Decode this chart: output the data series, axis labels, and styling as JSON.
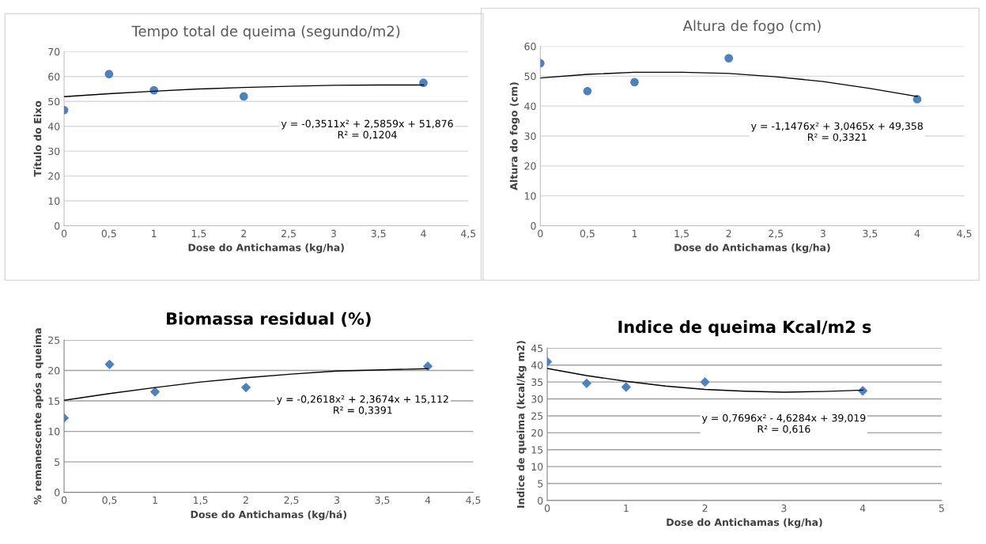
{
  "chart_data": [
    {
      "type": "scatter",
      "title": "Tempo total de queima (segundo/m2)",
      "xlabel": "Dose do Antichamas (kg/ha)",
      "ylabel": "Título do Eixo",
      "xlim": [
        0,
        4.5
      ],
      "xticks": [
        0,
        {
          "value": 0.5,
          "label": "0,5"
        },
        1,
        {
          "value": 1.5,
          "label": "1,5"
        },
        2,
        {
          "value": 2.5,
          "label": "2,5"
        },
        3,
        {
          "value": 3.5,
          "label": "3,5"
        },
        4,
        {
          "value": 4.5,
          "label": "4,5"
        }
      ],
      "ylim": [
        0,
        70
      ],
      "yticks": [
        0,
        10,
        20,
        30,
        40,
        50,
        60,
        70
      ],
      "grid": "y",
      "marker": "circle",
      "annotations": [
        "y = -0,3511x² + 2,5859x + 51,876\nR² = 0,1204"
      ],
      "series": [
        {
          "color": "#4f81bd",
          "x": [
            0,
            0.5,
            1,
            2,
            4
          ],
          "values": [
            46.5,
            61,
            54.5,
            52,
            57.5
          ]
        },
        {
          "type": "line",
          "marker": "none",
          "color": "#000000",
          "x": [
            0,
            0.5,
            1,
            1.5,
            2,
            2.5,
            3,
            3.5,
            4
          ],
          "values": [
            51.9,
            53.1,
            54.1,
            55.0,
            55.6,
            56.1,
            56.5,
            56.6,
            56.6
          ]
        }
      ]
    },
    {
      "type": "scatter",
      "title": "Altura de fogo (cm)",
      "xlabel": "Dose do Antichamas (kg/ha)",
      "ylabel": "Altura do fogo (cm)",
      "xlim": [
        0,
        4.5
      ],
      "xticks": [
        0,
        {
          "value": 0.5,
          "label": "0,5"
        },
        1,
        {
          "value": 1.5,
          "label": "1,5"
        },
        2,
        {
          "value": 2.5,
          "label": "2,5"
        },
        3,
        {
          "value": 3.5,
          "label": "3,5"
        },
        4,
        {
          "value": 4.5,
          "label": "4,5"
        }
      ],
      "ylim": [
        0,
        60
      ],
      "yticks": [
        0,
        10,
        20,
        30,
        40,
        50,
        60
      ],
      "grid": "y",
      "marker": "circle",
      "annotations": [
        "y = -1,1476x² + 3,0465x + 49,358\nR² = 0,3321"
      ],
      "series": [
        {
          "color": "#4f81bd",
          "x": [
            0,
            0.5,
            1,
            2,
            4
          ],
          "values": [
            54.3,
            45,
            48,
            56,
            42.3
          ]
        },
        {
          "type": "line",
          "marker": "none",
          "color": "#000000",
          "x": [
            0,
            0.5,
            1,
            1.5,
            2,
            2.5,
            3,
            3.5,
            4
          ],
          "values": [
            49.4,
            50.6,
            51.3,
            51.3,
            50.9,
            49.8,
            48.2,
            45.9,
            43.2
          ]
        }
      ]
    },
    {
      "type": "scatter",
      "title": "Biomassa residual (%)",
      "xlabel": "Dose do Antichamas (kg/há)",
      "ylabel": "% remanescente após a queima",
      "xlim": [
        0,
        4.5
      ],
      "xticks": [
        0,
        {
          "value": 0.5,
          "label": "0,5"
        },
        1,
        {
          "value": 1.5,
          "label": "1,5"
        },
        2,
        {
          "value": 2.5,
          "label": "2,5"
        },
        3,
        {
          "value": 3.5,
          "label": "3,5"
        },
        4,
        {
          "value": 4.5,
          "label": "4,5"
        }
      ],
      "ylim": [
        0,
        25
      ],
      "yticks": [
        0,
        5,
        10,
        15,
        20,
        25
      ],
      "grid": "y",
      "marker": "diamond",
      "annotations": [
        "y = -0,2618x² + 2,3674x + 15,112\nR² = 0,3391"
      ],
      "series": [
        {
          "color": "#4f81bd",
          "x": [
            0,
            0.5,
            1,
            2,
            4
          ],
          "values": [
            12.2,
            21,
            16.5,
            17.2,
            20.7
          ]
        },
        {
          "type": "line",
          "marker": "none",
          "color": "#000000",
          "x": [
            0,
            0.5,
            1,
            1.5,
            2,
            2.5,
            3,
            3.5,
            4
          ],
          "values": [
            15.1,
            16.2,
            17.2,
            18.1,
            18.8,
            19.4,
            19.9,
            20.1,
            20.3
          ]
        }
      ]
    },
    {
      "type": "scatter",
      "title": "Indice de queima Kcal/m2 s",
      "xlabel": "Dose do Antichamas (kg/ha)",
      "ylabel": "Indice de queima (kcal/kg m2)",
      "xlim": [
        0,
        5
      ],
      "xticks": [
        0,
        1,
        2,
        3,
        4,
        5
      ],
      "ylim": [
        0,
        45
      ],
      "yticks": [
        0,
        5,
        10,
        15,
        20,
        25,
        30,
        35,
        40,
        45
      ],
      "grid": "y",
      "marker": "diamond",
      "annotations": [
        "y = 0,7696x² - 4,6284x + 39,019\nR² = 0,616"
      ],
      "series": [
        {
          "color": "#4f81bd",
          "x": [
            0,
            0.5,
            1,
            2,
            4
          ],
          "values": [
            41,
            34.6,
            33.5,
            35,
            32.4
          ]
        },
        {
          "type": "line",
          "marker": "none",
          "color": "#000000",
          "x": [
            0,
            0.5,
            1,
            1.5,
            2,
            2.5,
            3,
            3.5,
            4
          ],
          "values": [
            39.0,
            36.9,
            35.2,
            33.8,
            32.8,
            32.3,
            32.0,
            32.2,
            32.6
          ]
        }
      ]
    }
  ]
}
